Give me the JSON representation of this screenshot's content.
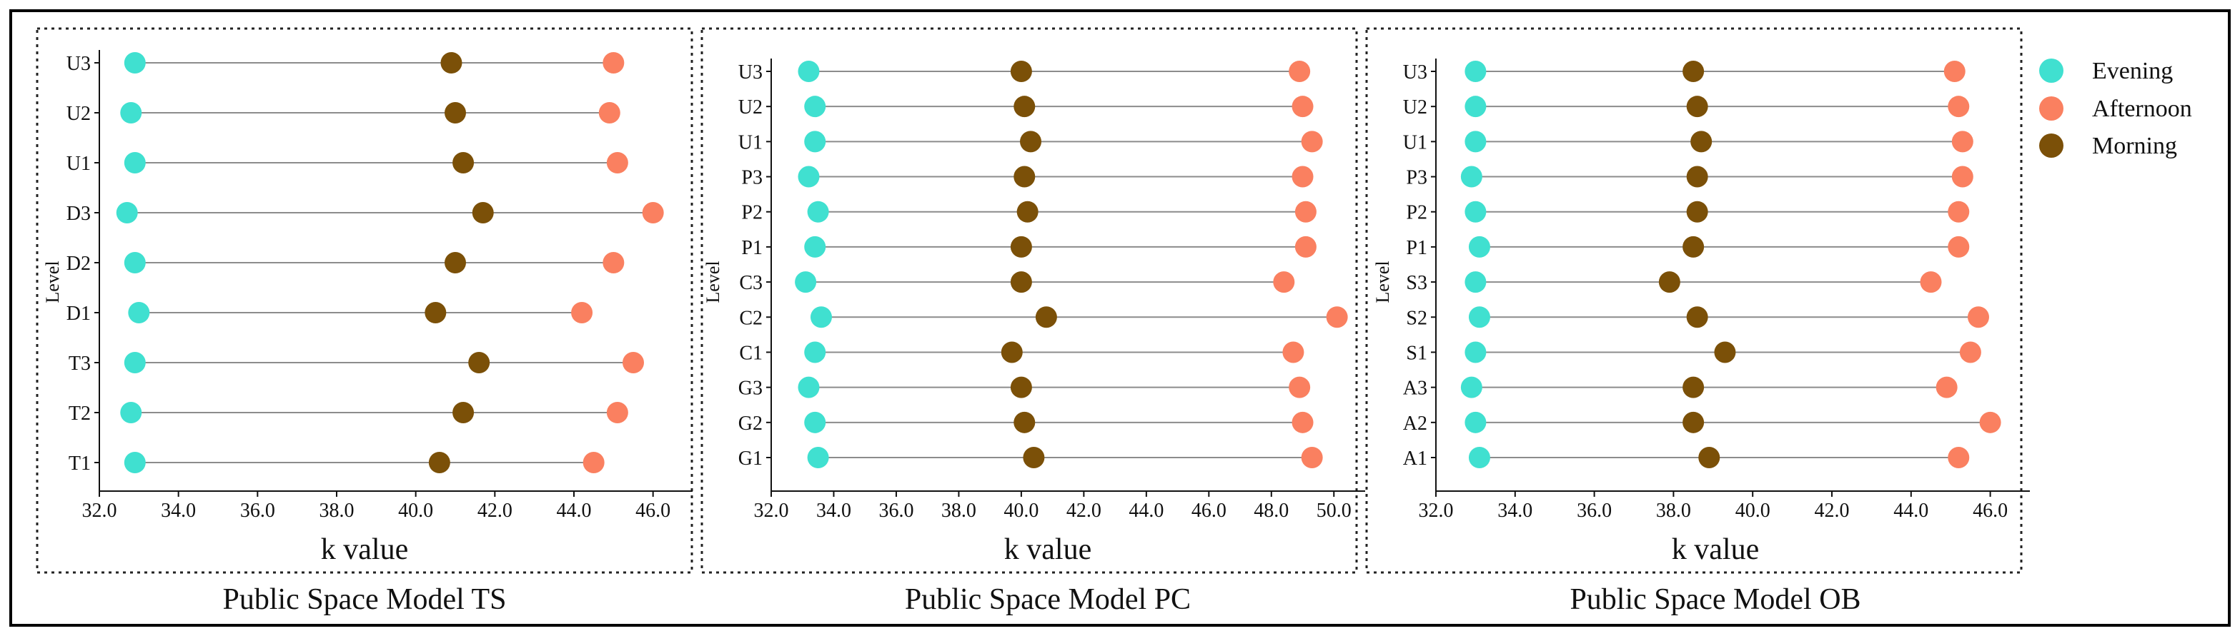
{
  "colors": {
    "evening": "#40E0D0",
    "afternoon": "#FA8060",
    "morning": "#7B5008",
    "connector": "#8c8c8c",
    "axis": "#111111",
    "frame": "#000000"
  },
  "legend": {
    "items": [
      {
        "key": "evening",
        "label": "Evening"
      },
      {
        "key": "afternoon",
        "label": "Afternoon"
      },
      {
        "key": "morning",
        "label": "Morning"
      }
    ]
  },
  "chart_data": [
    {
      "type": "dumbbell",
      "title": "Public Space Model TS",
      "xlabel": "k value",
      "ylabel": "Level",
      "xlim": [
        32.0,
        47.0
      ],
      "xticks": [
        32.0,
        34.0,
        36.0,
        38.0,
        40.0,
        42.0,
        44.0,
        46.0
      ],
      "xtick_labels": [
        "32.0",
        "34.0",
        "36.0",
        "38.0",
        "40.0",
        "42.0",
        "44.0",
        "46.0"
      ],
      "categories": [
        "U3",
        "U2",
        "U1",
        "D3",
        "D2",
        "D1",
        "T3",
        "T2",
        "T1"
      ],
      "series": [
        {
          "name": "Evening",
          "key": "evening",
          "values": [
            32.9,
            32.8,
            32.9,
            32.7,
            32.9,
            33.0,
            32.9,
            32.8,
            32.9
          ]
        },
        {
          "name": "Morning",
          "key": "morning",
          "values": [
            40.9,
            41.0,
            41.2,
            41.7,
            41.0,
            40.5,
            41.6,
            41.2,
            40.6
          ]
        },
        {
          "name": "Afternoon",
          "key": "afternoon",
          "values": [
            45.0,
            44.9,
            45.1,
            46.0,
            45.0,
            44.2,
            45.5,
            45.1,
            44.5
          ]
        }
      ]
    },
    {
      "type": "dumbbell",
      "title": "Public Space Model PC",
      "xlabel": "k value",
      "ylabel": "Level",
      "xlim": [
        32.0,
        51.0
      ],
      "xticks": [
        32.0,
        34.0,
        36.0,
        38.0,
        40.0,
        42.0,
        44.0,
        46.0,
        48.0,
        50.0
      ],
      "xtick_labels": [
        "32.0",
        "34.0",
        "36.0",
        "38.0",
        "40.0",
        "42.0",
        "44.0",
        "46.0",
        "48.0",
        "50.0"
      ],
      "categories": [
        "U3",
        "U2",
        "U1",
        "P3",
        "P2",
        "P1",
        "C3",
        "C2",
        "C1",
        "G3",
        "G2",
        "G1"
      ],
      "series": [
        {
          "name": "Evening",
          "key": "evening",
          "values": [
            33.2,
            33.4,
            33.4,
            33.2,
            33.5,
            33.4,
            33.1,
            33.6,
            33.4,
            33.2,
            33.4,
            33.5
          ]
        },
        {
          "name": "Morning",
          "key": "morning",
          "values": [
            40.0,
            40.1,
            40.3,
            40.1,
            40.2,
            40.0,
            40.0,
            40.8,
            39.7,
            40.0,
            40.1,
            40.4
          ]
        },
        {
          "name": "Afternoon",
          "key": "afternoon",
          "values": [
            48.9,
            49.0,
            49.3,
            49.0,
            49.1,
            49.1,
            48.4,
            50.1,
            48.7,
            48.9,
            49.0,
            49.3
          ]
        }
      ]
    },
    {
      "type": "dumbbell",
      "title": "Public Space Model OB",
      "xlabel": "k value",
      "ylabel": "Level",
      "xlim": [
        32.0,
        47.0
      ],
      "xticks": [
        32.0,
        34.0,
        36.0,
        38.0,
        40.0,
        42.0,
        44.0,
        46.0
      ],
      "xtick_labels": [
        "32.0",
        "34.0",
        "36.0",
        "38.0",
        "40.0",
        "42.0",
        "44.0",
        "46.0"
      ],
      "categories": [
        "U3",
        "U2",
        "U1",
        "P3",
        "P2",
        "P1",
        "S3",
        "S2",
        "S1",
        "A3",
        "A2",
        "A1"
      ],
      "series": [
        {
          "name": "Evening",
          "key": "evening",
          "values": [
            33.0,
            33.0,
            33.0,
            32.9,
            33.0,
            33.1,
            33.0,
            33.1,
            33.0,
            32.9,
            33.0,
            33.1
          ]
        },
        {
          "name": "Morning",
          "key": "morning",
          "values": [
            38.5,
            38.6,
            38.7,
            38.6,
            38.6,
            38.5,
            37.9,
            38.6,
            39.3,
            38.5,
            38.5,
            38.9
          ]
        },
        {
          "name": "Afternoon",
          "key": "afternoon",
          "values": [
            45.1,
            45.2,
            45.3,
            45.3,
            45.2,
            45.2,
            44.5,
            45.7,
            45.5,
            44.9,
            46.0,
            45.2
          ]
        }
      ]
    }
  ]
}
